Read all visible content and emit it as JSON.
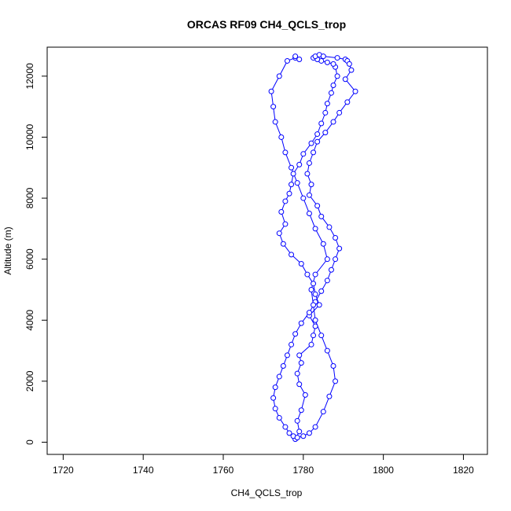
{
  "chart_data": {
    "type": "line",
    "title": "ORCAS RF09 CH4_QCLS_trop",
    "xlabel": "CH4_QCLS_trop",
    "ylabel": "Altitude (m)",
    "xlim": [
      1716,
      1826
    ],
    "ylim": [
      -400,
      12950
    ],
    "xticks": [
      1720,
      1740,
      1760,
      1780,
      1800,
      1820
    ],
    "yticks": [
      0,
      2000,
      4000,
      6000,
      8000,
      10000,
      12000
    ],
    "grid": false,
    "markers": "open-circle",
    "color": "#0000ff",
    "series": [
      {
        "x": [
          1778.0,
          1779.0,
          1778.5,
          1779.5,
          1780.5,
          1779.0,
          1778.5,
          1779.5,
          1779.0,
          1782.0,
          1782.5,
          1783.0,
          1781.5,
          1784.0,
          1783.0,
          1782.5,
          1781.0,
          1779.5,
          1777.0,
          1775.0,
          1774.0,
          1775.5,
          1774.5,
          1775.5,
          1776.5,
          1777.0,
          1777.5,
          1779.0,
          1780.0,
          1782.0,
          1783.5,
          1784.5,
          1785.5,
          1786.0,
          1787.0,
          1787.5,
          1788.5,
          1788.0,
          1787.5,
          1786.0,
          1784.5,
          1783.5,
          1782.5,
          1783.0,
          1784.0,
          1785.0,
          1788.5,
          1790.5,
          1791.0,
          1791.5,
          1792.0,
          1790.5,
          1793.0,
          1791.0,
          1789.0,
          1787.5,
          1785.5,
          1783.5,
          1782.5,
          1781.5,
          1781.0,
          1782.0,
          1781.5,
          1783.5,
          1784.5,
          1786.5,
          1788.0,
          1789.0,
          1788.0,
          1787.0,
          1786.0,
          1784.5,
          1783.0,
          1781.5,
          1779.5,
          1778.0,
          1777.0,
          1776.0,
          1775.0,
          1774.0,
          1773.0,
          1772.5,
          1773.0,
          1774.0,
          1775.5,
          1776.5,
          1777.5,
          1778.5,
          1780.0,
          1781.5,
          1783.0,
          1785.0,
          1786.5,
          1788.0,
          1787.5,
          1786.0,
          1784.5,
          1783.0,
          1782.5,
          1782.0,
          1783.0,
          1786.0,
          1785.0,
          1783.0,
          1781.5,
          1780.0,
          1778.5,
          1777.0,
          1775.5,
          1774.5,
          1773.0,
          1772.5,
          1772.0,
          1774.0,
          1776.0,
          1778.0,
          1778.0,
          1779.0
        ],
        "y": [
          100,
          350,
          700,
          1050,
          1550,
          1900,
          2250,
          2600,
          2850,
          3200,
          3500,
          3800,
          4150,
          4500,
          4850,
          5200,
          5500,
          5850,
          6150,
          6500,
          6850,
          7150,
          7550,
          7900,
          8150,
          8450,
          8800,
          9100,
          9450,
          9800,
          10100,
          10450,
          10800,
          11100,
          11450,
          11700,
          12000,
          12300,
          12400,
          12450,
          12500,
          12550,
          12600,
          12650,
          12700,
          12650,
          12600,
          12550,
          12500,
          12400,
          12200,
          11900,
          11500,
          11150,
          10800,
          10500,
          10150,
          9850,
          9500,
          9150,
          8800,
          8450,
          8100,
          7750,
          7400,
          7050,
          6700,
          6350,
          6000,
          5650,
          5300,
          4950,
          4600,
          4250,
          3900,
          3550,
          3200,
          2850,
          2500,
          2150,
          1800,
          1450,
          1100,
          800,
          500,
          300,
          200,
          150,
          200,
          300,
          500,
          1000,
          1500,
          2000,
          2500,
          3000,
          3500,
          4000,
          4500,
          5000,
          5500,
          6000,
          6500,
          7000,
          7500,
          8000,
          8500,
          9000,
          9500,
          10000,
          10500,
          11000,
          11500,
          12000,
          12500,
          12600,
          12650,
          12550
        ]
      }
    ]
  }
}
